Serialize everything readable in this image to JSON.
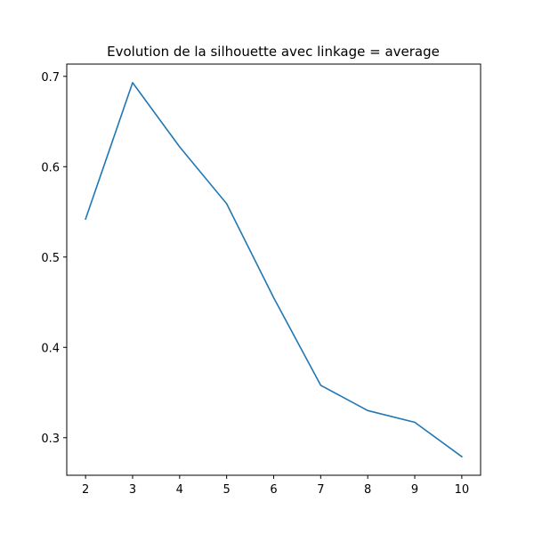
{
  "chart_data": {
    "type": "line",
    "title": "Evolution de la silhouette avec linkage = average",
    "xlabel": "",
    "ylabel": "",
    "x": [
      2,
      3,
      4,
      5,
      6,
      7,
      8,
      9,
      10
    ],
    "series": [
      {
        "values": [
          0.542,
          0.693,
          0.622,
          0.559,
          0.455,
          0.358,
          0.33,
          0.317,
          0.279
        ],
        "color": "#1f77b4"
      }
    ],
    "xlim": [
      1.6,
      10.4
    ],
    "ylim": [
      0.2584,
      0.7136
    ],
    "xticks": [
      2,
      3,
      4,
      5,
      6,
      7,
      8,
      9,
      10
    ],
    "yticks": [
      0.3,
      0.4,
      0.5,
      0.6,
      0.7
    ],
    "grid": false,
    "legend": "none"
  }
}
